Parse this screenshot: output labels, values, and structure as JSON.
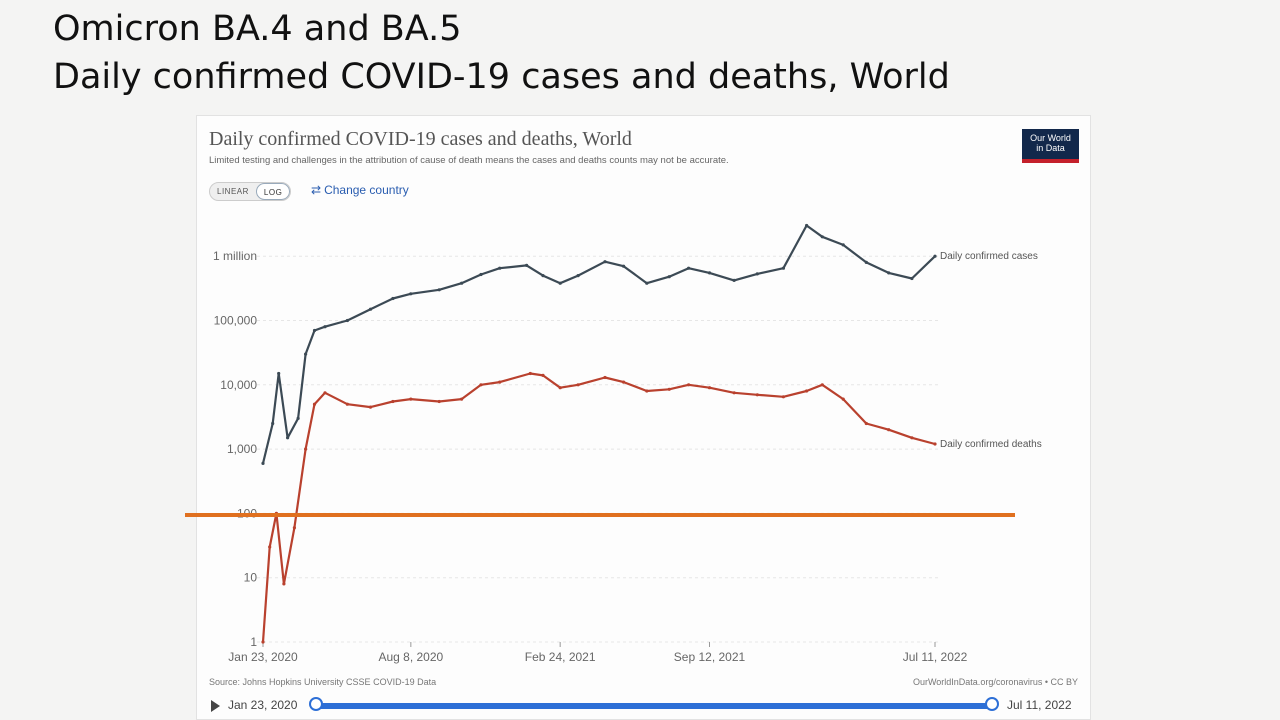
{
  "slide": {
    "title_line1": "Omicron BA.4 and BA.5",
    "title_line2": "Daily confirmed COVID-19 cases and deaths, World"
  },
  "chart": {
    "title": "Daily confirmed COVID-19 cases and deaths, World",
    "subtitle": "Limited testing and challenges in the attribution of cause of death means the cases and deaths counts may not be accurate.",
    "logo_line1": "Our World",
    "logo_line2": "in Data",
    "scale_linear": "LINEAR",
    "scale_log": "LOG",
    "change_country": "Change country",
    "source": "Source: Johns Hopkins University CSSE COVID-19 Data",
    "license": "OurWorldInData.org/coronavirus • CC BY",
    "timeline_start": "Jan 23, 2020",
    "timeline_end": "Jul 11, 2022"
  },
  "colors": {
    "cases": "#3c4a55",
    "deaths": "#b9412e",
    "annotation_line": "#e0701f",
    "accent": "#2d6fd6"
  },
  "chart_data": {
    "type": "line",
    "title": "Daily confirmed COVID-19 cases and deaths, World",
    "subtitle": "Limited testing and challenges in the attribution of cause of death means the cases and deaths counts may not be accurate.",
    "yscale": "log",
    "ylim": [
      1,
      3000000
    ],
    "yticks": [
      1,
      10,
      100,
      1000,
      10000,
      100000,
      1000000
    ],
    "ytick_labels": [
      "1",
      "10",
      "100",
      "1,000",
      "10,000",
      "100,000",
      "1 million"
    ],
    "xlim": [
      "2020-01-23",
      "2022-07-11"
    ],
    "xticks": [
      "2020-01-23",
      "2020-08-08",
      "2021-02-24",
      "2021-09-12",
      "2022-07-11"
    ],
    "xtick_labels": [
      "Jan 23, 2020",
      "Aug 8, 2020",
      "Feb 24, 2021",
      "Sep 12, 2021",
      "Jul 11, 2022"
    ],
    "grid": true,
    "legend": "inline-right",
    "annotation_hline": 100,
    "series": [
      {
        "name": "Daily confirmed cases",
        "x": [
          "2020-01-23",
          "2020-02-05",
          "2020-02-13",
          "2020-02-25",
          "2020-03-10",
          "2020-03-20",
          "2020-04-01",
          "2020-04-15",
          "2020-05-15",
          "2020-06-15",
          "2020-07-15",
          "2020-08-08",
          "2020-09-15",
          "2020-10-15",
          "2020-11-10",
          "2020-12-05",
          "2021-01-10",
          "2021-02-01",
          "2021-02-24",
          "2021-03-20",
          "2021-04-25",
          "2021-05-20",
          "2021-06-20",
          "2021-07-20",
          "2021-08-15",
          "2021-09-12",
          "2021-10-15",
          "2021-11-15",
          "2021-12-20",
          "2022-01-20",
          "2022-02-10",
          "2022-03-10",
          "2022-04-10",
          "2022-05-10",
          "2022-06-10",
          "2022-07-11"
        ],
        "y": [
          600,
          2500,
          15000,
          1500,
          3000,
          30000,
          70000,
          80000,
          100000,
          150000,
          220000,
          260000,
          300000,
          380000,
          520000,
          650000,
          720000,
          500000,
          380000,
          500000,
          820000,
          700000,
          380000,
          480000,
          650000,
          550000,
          420000,
          530000,
          650000,
          3000000,
          2000000,
          1500000,
          800000,
          550000,
          450000,
          1000000
        ]
      },
      {
        "name": "Daily confirmed deaths",
        "x": [
          "2020-01-23",
          "2020-02-01",
          "2020-02-10",
          "2020-02-20",
          "2020-03-05",
          "2020-03-20",
          "2020-04-01",
          "2020-04-15",
          "2020-05-15",
          "2020-06-15",
          "2020-07-15",
          "2020-08-08",
          "2020-09-15",
          "2020-10-15",
          "2020-11-10",
          "2020-12-05",
          "2021-01-15",
          "2021-02-01",
          "2021-02-24",
          "2021-03-20",
          "2021-04-25",
          "2021-05-20",
          "2021-06-20",
          "2021-07-20",
          "2021-08-15",
          "2021-09-12",
          "2021-10-15",
          "2021-11-15",
          "2021-12-20",
          "2022-01-20",
          "2022-02-10",
          "2022-03-10",
          "2022-04-10",
          "2022-05-10",
          "2022-06-10",
          "2022-07-11"
        ],
        "y": [
          1,
          30,
          100,
          8,
          60,
          1000,
          5000,
          7500,
          5000,
          4500,
          5500,
          6000,
          5500,
          6000,
          10000,
          11000,
          15000,
          14000,
          9000,
          10000,
          13000,
          11000,
          8000,
          8500,
          10000,
          9000,
          7500,
          7000,
          6500,
          8000,
          10000,
          6000,
          2500,
          2000,
          1500,
          1200
        ]
      }
    ]
  }
}
